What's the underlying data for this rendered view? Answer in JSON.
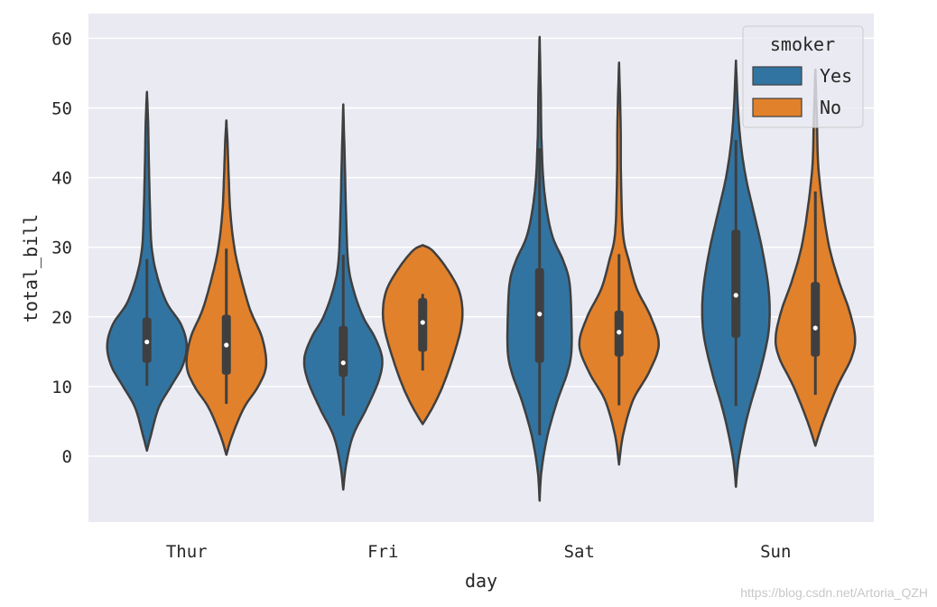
{
  "chart_data": {
    "type": "violin",
    "xlabel": "day",
    "ylabel": "total_bill",
    "categories": [
      "Thur",
      "Fri",
      "Sat",
      "Sun"
    ],
    "ylim": [
      -9.5,
      63.5
    ],
    "yticks": [
      0,
      10,
      20,
      30,
      40,
      50,
      60
    ],
    "grid": true,
    "legend": {
      "title": "smoker",
      "placement": "top-right",
      "entries": [
        "Yes",
        "No"
      ]
    },
    "colors": {
      "Yes": "#3274a1",
      "No": "#e1812c",
      "outline": "#3f3f3f",
      "background": "#eaeaf2",
      "grid": "#ffffff"
    },
    "series": [
      {
        "name": "Yes",
        "violins": [
          {
            "category": "Thur",
            "median": 16.4,
            "q1": 13.4,
            "q3": 19.9,
            "whisker_low": 10.1,
            "whisker_high": 28.3,
            "density": [
              [
                0.8,
                0
              ],
              [
                3,
                0.1
              ],
              [
                7,
                0.3
              ],
              [
                10,
                0.6
              ],
              [
                13,
                0.9
              ],
              [
                16,
                1.0
              ],
              [
                19,
                0.85
              ],
              [
                22,
                0.5
              ],
              [
                26,
                0.25
              ],
              [
                30,
                0.12
              ],
              [
                35,
                0.08
              ],
              [
                42,
                0.05
              ],
              [
                48,
                0.03
              ],
              [
                52.3,
                0
              ]
            ]
          },
          {
            "category": "Fri",
            "median": 13.4,
            "q1": 11.4,
            "q3": 18.7,
            "whisker_low": 5.8,
            "whisker_high": 28.9,
            "density": [
              [
                -4.8,
                0
              ],
              [
                -1,
                0.08
              ],
              [
                3,
                0.25
              ],
              [
                7,
                0.6
              ],
              [
                11,
                0.9
              ],
              [
                14,
                0.98
              ],
              [
                17,
                0.8
              ],
              [
                20,
                0.5
              ],
              [
                24,
                0.25
              ],
              [
                28,
                0.12
              ],
              [
                35,
                0.07
              ],
              [
                42,
                0.04
              ],
              [
                50.5,
                0
              ]
            ]
          },
          {
            "category": "Sat",
            "median": 20.4,
            "q1": 13.4,
            "q3": 27.0,
            "whisker_low": 3.0,
            "whisker_high": 44.2,
            "density": [
              [
                -6.4,
                0
              ],
              [
                -2,
                0.05
              ],
              [
                3,
                0.2
              ],
              [
                8,
                0.45
              ],
              [
                12,
                0.7
              ],
              [
                15,
                0.8
              ],
              [
                20,
                0.8
              ],
              [
                25,
                0.75
              ],
              [
                28,
                0.6
              ],
              [
                32,
                0.3
              ],
              [
                38,
                0.12
              ],
              [
                45,
                0.05
              ],
              [
                52,
                0.03
              ],
              [
                60.2,
                0
              ]
            ]
          },
          {
            "category": "Sun",
            "median": 23.1,
            "q1": 17.0,
            "q3": 32.5,
            "whisker_low": 7.2,
            "whisker_high": 45.4,
            "density": [
              [
                -4.4,
                0
              ],
              [
                0,
                0.08
              ],
              [
                6,
                0.3
              ],
              [
                12,
                0.6
              ],
              [
                17,
                0.8
              ],
              [
                21,
                0.85
              ],
              [
                25,
                0.8
              ],
              [
                30,
                0.65
              ],
              [
                35,
                0.45
              ],
              [
                40,
                0.25
              ],
              [
                45,
                0.12
              ],
              [
                50,
                0.05
              ],
              [
                56.8,
                0
              ]
            ]
          }
        ]
      },
      {
        "name": "No",
        "violins": [
          {
            "category": "Thur",
            "median": 15.95,
            "q1": 11.7,
            "q3": 20.3,
            "whisker_low": 7.5,
            "whisker_high": 29.8,
            "density": [
              [
                0.2,
                0
              ],
              [
                3,
                0.15
              ],
              [
                7,
                0.45
              ],
              [
                10,
                0.8
              ],
              [
                13,
                1.0
              ],
              [
                17,
                0.9
              ],
              [
                21,
                0.6
              ],
              [
                26,
                0.35
              ],
              [
                30,
                0.2
              ],
              [
                35,
                0.1
              ],
              [
                40,
                0.06
              ],
              [
                45,
                0.03
              ],
              [
                48.2,
                0
              ]
            ]
          },
          {
            "category": "Fri",
            "median": 19.2,
            "q1": 15.0,
            "q3": 22.7,
            "whisker_low": 12.3,
            "whisker_high": 23.3,
            "density": [
              [
                4.6,
                0
              ],
              [
                7,
                0.25
              ],
              [
                10,
                0.5
              ],
              [
                14,
                0.75
              ],
              [
                18,
                0.95
              ],
              [
                21,
                1.0
              ],
              [
                24,
                0.9
              ],
              [
                27,
                0.6
              ],
              [
                29.5,
                0.25
              ],
              [
                30.3,
                0
              ]
            ]
          },
          {
            "category": "Sat",
            "median": 17.8,
            "q1": 14.3,
            "q3": 20.9,
            "whisker_low": 7.3,
            "whisker_high": 29.0,
            "density": [
              [
                -1.2,
                0
              ],
              [
                3,
                0.1
              ],
              [
                8,
                0.35
              ],
              [
                12,
                0.75
              ],
              [
                16,
                1.0
              ],
              [
                20,
                0.8
              ],
              [
                24,
                0.45
              ],
              [
                28,
                0.25
              ],
              [
                32,
                0.1
              ],
              [
                40,
                0.05
              ],
              [
                48,
                0.04
              ],
              [
                56.5,
                0
              ]
            ]
          },
          {
            "category": "Sun",
            "median": 18.4,
            "q1": 14.3,
            "q3": 25.0,
            "whisker_low": 8.8,
            "whisker_high": 38.0,
            "density": [
              [
                1.5,
                0
              ],
              [
                5,
                0.2
              ],
              [
                10,
                0.55
              ],
              [
                14,
                0.9
              ],
              [
                17,
                1.0
              ],
              [
                21,
                0.85
              ],
              [
                25,
                0.6
              ],
              [
                30,
                0.35
              ],
              [
                36,
                0.18
              ],
              [
                42,
                0.07
              ],
              [
                48,
                0.04
              ],
              [
                55.5,
                0
              ]
            ]
          }
        ]
      }
    ]
  },
  "watermark": "https://blog.csdn.net/Artoria_QZH"
}
